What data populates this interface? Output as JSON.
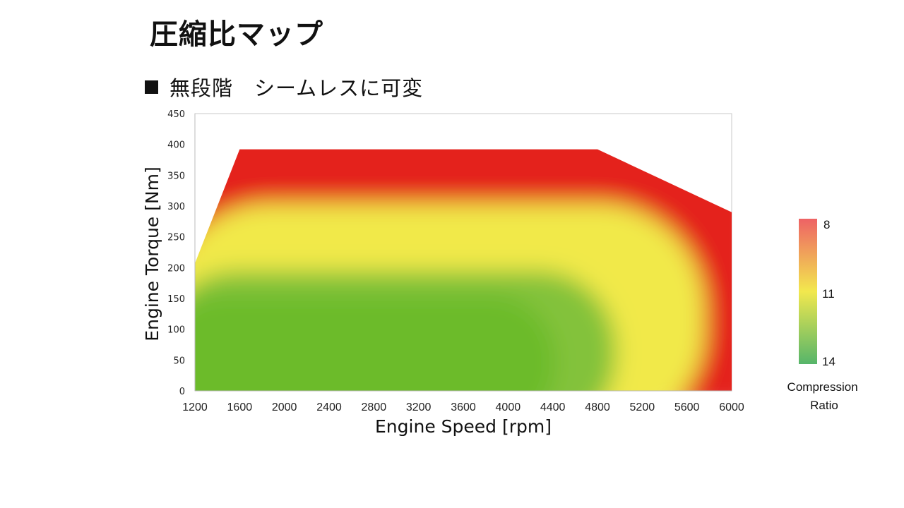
{
  "slide": {
    "title": "圧縮比マップ",
    "bullet": "無段階　シームレスに可変"
  },
  "chart_data": {
    "type": "heatmap",
    "title": "",
    "xlabel": "Engine Speed [rpm]",
    "ylabel": "Engine Torque [Nm]",
    "xlim": [
      1200,
      6000
    ],
    "ylim": [
      0,
      450
    ],
    "x_ticks": [
      1200,
      1600,
      2000,
      2400,
      2800,
      3200,
      3600,
      4000,
      4400,
      4800,
      5200,
      5600,
      6000
    ],
    "y_ticks": [
      0,
      50,
      100,
      150,
      200,
      250,
      300,
      350,
      400,
      450
    ],
    "grid": false,
    "boundary": [
      {
        "rpm": 1200,
        "torque": 0
      },
      {
        "rpm": 1200,
        "torque": 207
      },
      {
        "rpm": 1600,
        "torque": 392
      },
      {
        "rpm": 4800,
        "torque": 392
      },
      {
        "rpm": 6000,
        "torque": 290
      },
      {
        "rpm": 6000,
        "torque": 0
      }
    ],
    "zones": [
      {
        "compression_ratio": 14,
        "region": "low torque (below ~150 Nm), 1200–4000 rpm"
      },
      {
        "compression_ratio": 11,
        "region": "~200 Nm band, and 4400–5200 rpm at low torque"
      },
      {
        "compression_ratio": 8,
        "region": "high torque (above ~300 Nm), and above 5600 rpm"
      }
    ],
    "colorbar": {
      "title": "Compression Ratio",
      "labels": [
        "8",
        "11",
        "14"
      ],
      "colors": {
        "8": "#e8505a",
        "11": "#f2e84e",
        "14": "#5cb85c"
      }
    },
    "colors": {
      "high_ratio_green": "#6cbb2c",
      "mid_ratio_yellow": "#f1e94a",
      "low_ratio_red": "#e4221b"
    }
  }
}
